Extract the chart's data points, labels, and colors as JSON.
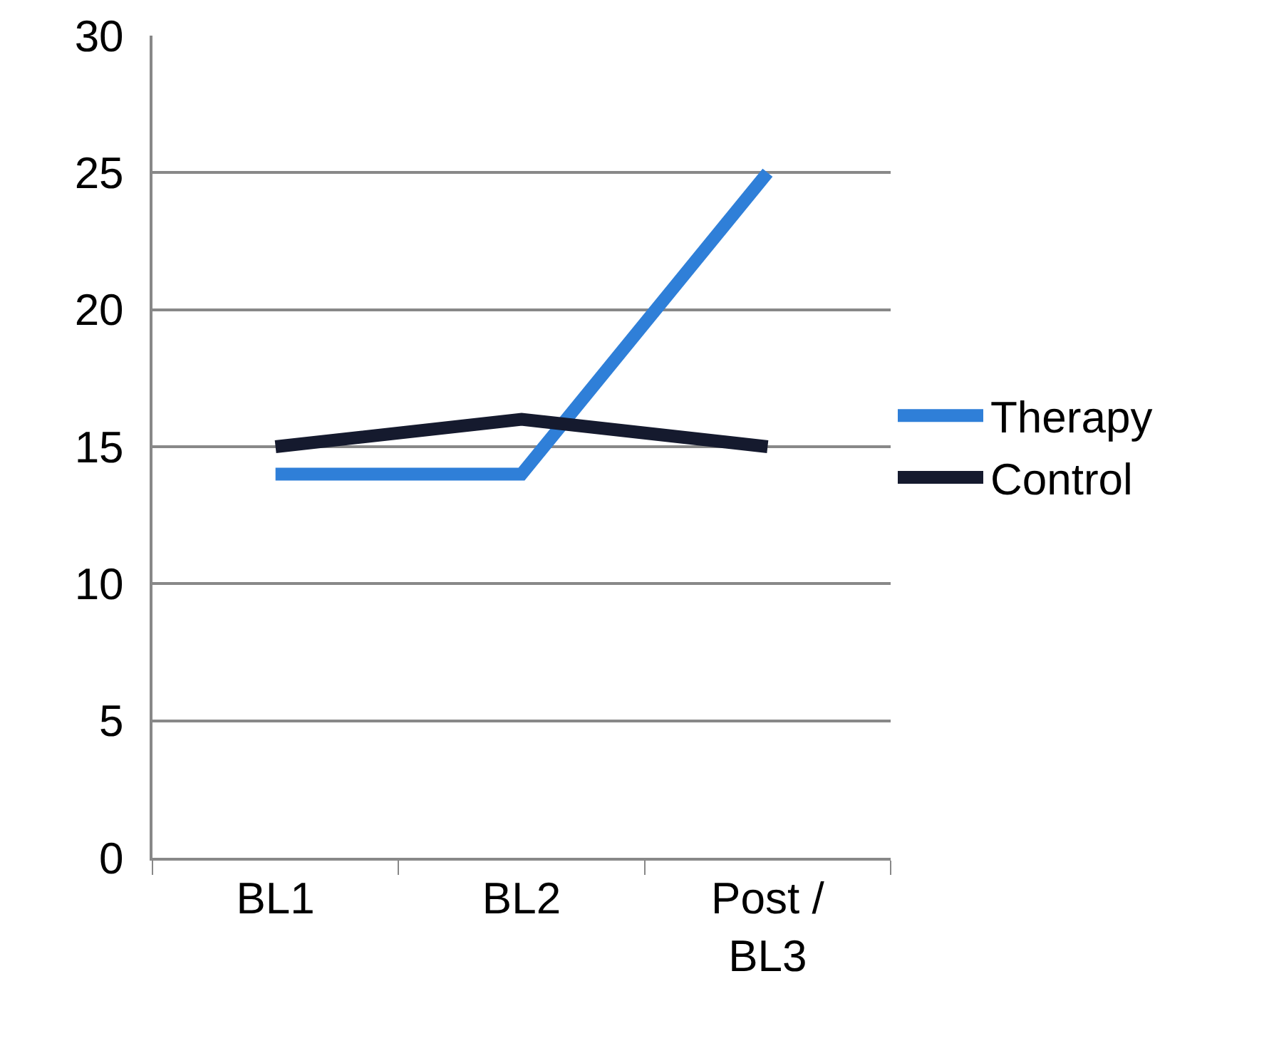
{
  "chart_data": {
    "type": "line",
    "categories": [
      "BL1",
      "BL2",
      "Post / BL3"
    ],
    "series": [
      {
        "name": "Therapy",
        "color": "#2f7fd8",
        "values": [
          14,
          14,
          25
        ]
      },
      {
        "name": "Control",
        "color": "#151a2e",
        "values": [
          15,
          16,
          15
        ]
      }
    ],
    "ylim": [
      0,
      30
    ],
    "yticks": [
      0,
      5,
      10,
      15,
      20,
      25,
      30
    ],
    "grid": "y",
    "legend": "right",
    "marker": "none",
    "line_style": "solid"
  }
}
